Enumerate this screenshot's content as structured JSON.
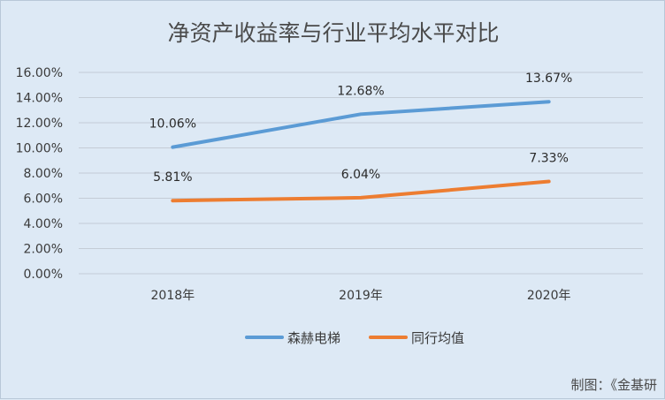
{
  "chart_data": {
    "type": "line",
    "title": "净资产收益率与行业平均水平对比",
    "categories": [
      "2018年",
      "2019年",
      "2020年"
    ],
    "series": [
      {
        "name": "森赫电梯",
        "values": [
          10.06,
          12.68,
          13.67
        ],
        "labels": [
          "10.06%",
          "12.68%",
          "13.67%"
        ],
        "color": "#5b9bd5"
      },
      {
        "name": "同行均值",
        "values": [
          5.81,
          6.04,
          7.33
        ],
        "labels": [
          "5.81%",
          "6.04%",
          "7.33%"
        ],
        "color": "#ed7d31"
      }
    ],
    "ylim": [
      0,
      16
    ],
    "yticks": [
      0,
      2,
      4,
      6,
      8,
      10,
      12,
      14,
      16
    ],
    "ytick_labels": [
      "0.00%",
      "2.00%",
      "4.00%",
      "6.00%",
      "8.00%",
      "10.00%",
      "12.00%",
      "14.00%",
      "16.00%"
    ],
    "grid": true,
    "legend_position": "bottom",
    "xlabel": "",
    "ylabel": ""
  },
  "footer": {
    "credit": "制图：《金基研"
  },
  "colors": {
    "background": "#dde9f5",
    "grid": "#c4ccd6"
  }
}
